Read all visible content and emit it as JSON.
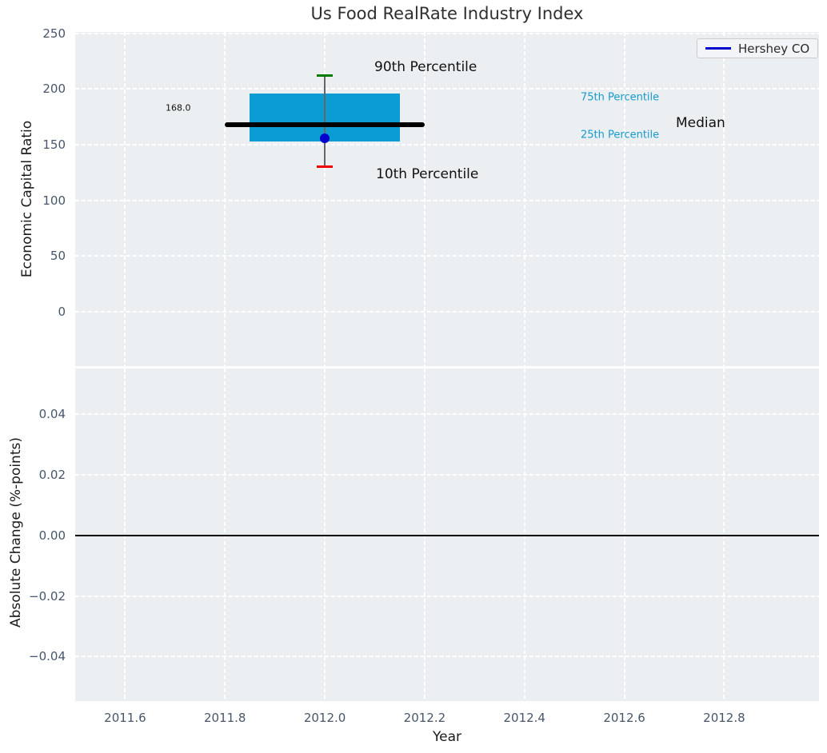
{
  "title": "Us Food RealRate Industry Index",
  "legend": {
    "label": "Hershey CO"
  },
  "top_plot": {
    "ylabel": "Economic Capital Ratio",
    "ytick_labels": [
      "0",
      "50",
      "100",
      "150",
      "200",
      "250"
    ],
    "annotations": {
      "p90_label": "90th Percentile",
      "p10_label": "10th Percentile",
      "p75_label": "75th Percentile",
      "p25_label": "25th Percentile",
      "median_label": "Median",
      "median_value_label": "168.0"
    }
  },
  "bottom_plot": {
    "ylabel": "Absolute Change (%-points)",
    "xlabel": "Year",
    "ytick_labels": [
      "0.04",
      "0.02",
      "0.00",
      "−0.02",
      "−0.04"
    ],
    "xtick_labels": [
      "2011.6",
      "2011.8",
      "2012.0",
      "2012.2",
      "2012.4",
      "2012.6",
      "2012.8"
    ]
  },
  "colors": {
    "plot_background": "#eceff1",
    "grid_line": "#ffffff",
    "box_fill": "#0a9cd3",
    "median_line": "#000000",
    "p90_cap": "#007a00",
    "p10_cap": "#ee0000",
    "whisker": "#666666",
    "company_dot": "#0000cc",
    "legend_line": "#0000cc",
    "percentile_text": "#149bce",
    "tick_text": "#47566b",
    "zero_line": "#000000"
  },
  "chart_data": [
    {
      "type": "boxplot",
      "title": "Us Food RealRate Industry Index",
      "ylabel": "Economic Capital Ratio",
      "x_center": 2012.0,
      "percentiles": {
        "p10": 130,
        "p25": 152.5,
        "median": 168.0,
        "p75": 196,
        "p90": 212
      },
      "median_value_label": "168.0",
      "company_point": {
        "name": "Hershey CO",
        "x": 2012.0,
        "value": 156
      },
      "box_x_span": [
        2011.85,
        2012.15
      ],
      "median_x_span": [
        2011.8,
        2012.2
      ],
      "yticks": [
        0,
        50,
        100,
        150,
        200,
        250
      ],
      "ylim": [
        -49,
        251.2
      ],
      "xlim": [
        2011.5,
        2012.99
      ],
      "grid": true,
      "legend_entries": [
        "Hershey CO"
      ],
      "legend_position": "upper right",
      "annotations": [
        "90th Percentile",
        "10th Percentile",
        "75th Percentile",
        "25th Percentile",
        "Median",
        "168.0"
      ]
    },
    {
      "type": "line",
      "ylabel": "Absolute Change (%-points)",
      "xlabel": "Year",
      "yticks": [
        0.04,
        0.02,
        0.0,
        -0.02,
        -0.04
      ],
      "ylim": [
        -0.0547,
        0.0551
      ],
      "xticks": [
        2011.6,
        2011.8,
        2012.0,
        2012.2,
        2012.4,
        2012.6,
        2012.8
      ],
      "xlim": [
        2011.5,
        2012.99
      ],
      "zero_line_y": 0.0,
      "series": [],
      "grid": true
    }
  ]
}
